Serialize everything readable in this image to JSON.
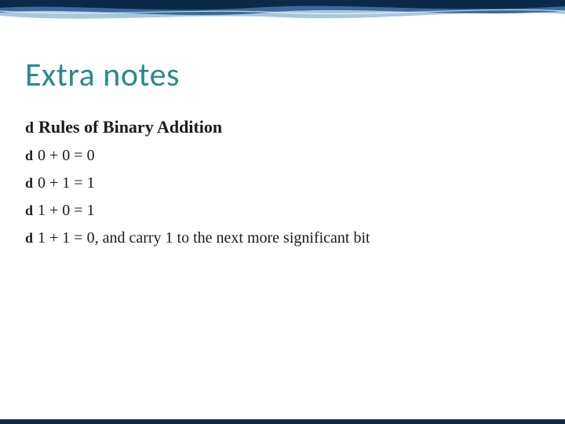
{
  "slide": {
    "title": "Extra notes",
    "title_color": "#2a8a8a",
    "title_fontsize": 42,
    "bullets": [
      {
        "text": "Rules of Binary Addition",
        "bold": true,
        "fontsize": 22
      },
      {
        "text": "0 + 0 = 0",
        "bold": false,
        "fontsize": 20
      },
      {
        "text": "0 + 1 = 1",
        "bold": false,
        "fontsize": 20
      },
      {
        "text": "1 + 0 = 1",
        "bold": false,
        "fontsize": 20
      },
      {
        "text": "1 + 1 = 0, and carry 1 to the next more significant bit",
        "bold": false,
        "fontsize": 20
      }
    ],
    "bullet_glyph": "་",
    "bullet_glyph_display": "d",
    "bullet_color": "#1a1a1a",
    "text_color": "#1a1a1a"
  },
  "theme": {
    "wave_dark": "#0b2a4a",
    "wave_mid": "#3b6a9a",
    "wave_light": "#a8c6de",
    "wave_highlight": "#ffffff",
    "bottom_bar_color": "#0b2a4a",
    "background": "#ffffff"
  }
}
